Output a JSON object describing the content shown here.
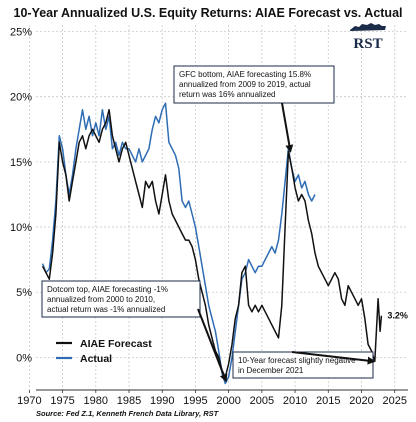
{
  "chart_data": {
    "type": "line",
    "title": "10-Year Annualized U.S. Equity Returns: AIAE Forecast vs. Actual",
    "source": "Source: Fed Z.1, Kenneth French Data Library, RST",
    "logo_text": "RST",
    "xlim": [
      1971,
      2027
    ],
    "ylim": [
      -0.025,
      0.255
    ],
    "x_ticks": [
      1970,
      1975,
      1980,
      1985,
      1990,
      1995,
      2000,
      2005,
      2010,
      2015,
      2020,
      2025
    ],
    "y_ticks": [
      {
        "value": 0.0,
        "label": "0%"
      },
      {
        "value": 0.05,
        "label": "5%"
      },
      {
        "value": 0.1,
        "label": "10%"
      },
      {
        "value": 0.15,
        "label": "15%"
      },
      {
        "value": 0.2,
        "label": "20%"
      },
      {
        "value": 0.25,
        "label": "25%"
      }
    ],
    "grid": true,
    "legend_position": "lower-left",
    "series": [
      {
        "name": "AIAE Forecast",
        "color": "#111111",
        "points": [
          [
            1972,
            0.07
          ],
          [
            1972.5,
            0.065
          ],
          [
            1973,
            0.06
          ],
          [
            1973.5,
            0.08
          ],
          [
            1974,
            0.11
          ],
          [
            1974.5,
            0.165
          ],
          [
            1975,
            0.15
          ],
          [
            1975.5,
            0.14
          ],
          [
            1976,
            0.12
          ],
          [
            1976.5,
            0.135
          ],
          [
            1977,
            0.15
          ],
          [
            1977.5,
            0.165
          ],
          [
            1978,
            0.17
          ],
          [
            1978.5,
            0.16
          ],
          [
            1979,
            0.17
          ],
          [
            1979.5,
            0.175
          ],
          [
            1980,
            0.17
          ],
          [
            1980.5,
            0.165
          ],
          [
            1981,
            0.175
          ],
          [
            1981.5,
            0.18
          ],
          [
            1982,
            0.19
          ],
          [
            1982.5,
            0.17
          ],
          [
            1983,
            0.16
          ],
          [
            1983.5,
            0.15
          ],
          [
            1984,
            0.16
          ],
          [
            1984.5,
            0.165
          ],
          [
            1985,
            0.155
          ],
          [
            1985.5,
            0.145
          ],
          [
            1986,
            0.135
          ],
          [
            1986.5,
            0.125
          ],
          [
            1987,
            0.115
          ],
          [
            1987.5,
            0.135
          ],
          [
            1988,
            0.13
          ],
          [
            1988.5,
            0.135
          ],
          [
            1989,
            0.12
          ],
          [
            1989.5,
            0.11
          ],
          [
            1990,
            0.125
          ],
          [
            1990.5,
            0.14
          ],
          [
            1991,
            0.12
          ],
          [
            1991.5,
            0.11
          ],
          [
            1992,
            0.105
          ],
          [
            1992.5,
            0.1
          ],
          [
            1993,
            0.095
          ],
          [
            1993.5,
            0.09
          ],
          [
            1994,
            0.09
          ],
          [
            1994.5,
            0.085
          ],
          [
            1995,
            0.075
          ],
          [
            1995.5,
            0.06
          ],
          [
            1996,
            0.05
          ],
          [
            1996.5,
            0.04
          ],
          [
            1997,
            0.025
          ],
          [
            1997.5,
            0.015
          ],
          [
            1998,
            0.005
          ],
          [
            1998.5,
            0.0
          ],
          [
            1999,
            -0.01
          ],
          [
            1999.5,
            -0.015
          ],
          [
            2000,
            -0.005
          ],
          [
            2000.5,
            0.01
          ],
          [
            2001,
            0.03
          ],
          [
            2001.5,
            0.04
          ],
          [
            2002,
            0.065
          ],
          [
            2002.5,
            0.07
          ],
          [
            2003,
            0.04
          ],
          [
            2003.5,
            0.035
          ],
          [
            2004,
            0.04
          ],
          [
            2004.5,
            0.035
          ],
          [
            2005,
            0.04
          ],
          [
            2005.5,
            0.035
          ],
          [
            2006,
            0.03
          ],
          [
            2006.5,
            0.025
          ],
          [
            2007,
            0.02
          ],
          [
            2007.5,
            0.015
          ],
          [
            2008,
            0.04
          ],
          [
            2008.5,
            0.1
          ],
          [
            2009,
            0.158
          ],
          [
            2009.5,
            0.145
          ],
          [
            2010,
            0.13
          ],
          [
            2010.5,
            0.12
          ],
          [
            2011,
            0.125
          ],
          [
            2011.5,
            0.12
          ],
          [
            2012,
            0.105
          ],
          [
            2012.5,
            0.095
          ],
          [
            2013,
            0.08
          ],
          [
            2013.5,
            0.07
          ],
          [
            2014,
            0.065
          ],
          [
            2014.5,
            0.06
          ],
          [
            2015,
            0.055
          ],
          [
            2015.5,
            0.06
          ],
          [
            2016,
            0.065
          ],
          [
            2016.5,
            0.06
          ],
          [
            2017,
            0.045
          ],
          [
            2017.5,
            0.04
          ],
          [
            2018,
            0.055
          ],
          [
            2018.5,
            0.05
          ],
          [
            2019,
            0.045
          ],
          [
            2019.5,
            0.04
          ],
          [
            2020,
            0.045
          ],
          [
            2020.5,
            0.03
          ],
          [
            2021,
            0.01
          ],
          [
            2021.5,
            0.005
          ],
          [
            2022,
            -0.003
          ],
          [
            2022.5,
            0.045
          ],
          [
            2022.8,
            0.02
          ],
          [
            2023,
            0.032
          ]
        ]
      },
      {
        "name": "Actual",
        "color": "#2e6db4",
        "points": [
          [
            1972,
            0.072
          ],
          [
            1972.5,
            0.065
          ],
          [
            1973,
            0.068
          ],
          [
            1973.5,
            0.09
          ],
          [
            1974,
            0.12
          ],
          [
            1974.5,
            0.17
          ],
          [
            1975,
            0.16
          ],
          [
            1975.5,
            0.14
          ],
          [
            1976,
            0.125
          ],
          [
            1976.5,
            0.14
          ],
          [
            1977,
            0.16
          ],
          [
            1977.5,
            0.175
          ],
          [
            1978,
            0.19
          ],
          [
            1978.5,
            0.175
          ],
          [
            1979,
            0.185
          ],
          [
            1979.5,
            0.17
          ],
          [
            1980,
            0.18
          ],
          [
            1980.5,
            0.17
          ],
          [
            1981,
            0.19
          ],
          [
            1981.5,
            0.175
          ],
          [
            1982,
            0.185
          ],
          [
            1982.5,
            0.16
          ],
          [
            1983,
            0.165
          ],
          [
            1983.5,
            0.155
          ],
          [
            1984,
            0.165
          ],
          [
            1984.5,
            0.16
          ],
          [
            1985,
            0.16
          ],
          [
            1985.5,
            0.155
          ],
          [
            1986,
            0.15
          ],
          [
            1986.5,
            0.16
          ],
          [
            1987,
            0.15
          ],
          [
            1987.5,
            0.155
          ],
          [
            1988,
            0.16
          ],
          [
            1988.5,
            0.175
          ],
          [
            1989,
            0.185
          ],
          [
            1989.5,
            0.18
          ],
          [
            1990,
            0.19
          ],
          [
            1990.5,
            0.195
          ],
          [
            1991,
            0.165
          ],
          [
            1991.5,
            0.16
          ],
          [
            1992,
            0.155
          ],
          [
            1992.5,
            0.145
          ],
          [
            1993,
            0.12
          ],
          [
            1993.5,
            0.115
          ],
          [
            1994,
            0.12
          ],
          [
            1994.5,
            0.11
          ],
          [
            1995,
            0.1
          ],
          [
            1995.5,
            0.085
          ],
          [
            1996,
            0.07
          ],
          [
            1996.5,
            0.055
          ],
          [
            1997,
            0.04
          ],
          [
            1997.5,
            0.03
          ],
          [
            1998,
            0.02
          ],
          [
            1998.5,
            0.005
          ],
          [
            1999,
            -0.012
          ],
          [
            1999.5,
            -0.02
          ],
          [
            2000,
            -0.015
          ],
          [
            2000.5,
            0.0
          ],
          [
            2001,
            0.02
          ],
          [
            2001.5,
            0.04
          ],
          [
            2002,
            0.06
          ],
          [
            2002.5,
            0.065
          ],
          [
            2003,
            0.075
          ],
          [
            2003.5,
            0.07
          ],
          [
            2004,
            0.065
          ],
          [
            2004.5,
            0.07
          ],
          [
            2005,
            0.07
          ],
          [
            2005.5,
            0.075
          ],
          [
            2006,
            0.08
          ],
          [
            2006.5,
            0.085
          ],
          [
            2007,
            0.08
          ],
          [
            2007.5,
            0.09
          ],
          [
            2008,
            0.11
          ],
          [
            2008.5,
            0.135
          ],
          [
            2009,
            0.16
          ],
          [
            2009.5,
            0.145
          ],
          [
            2010,
            0.135
          ],
          [
            2010.5,
            0.14
          ],
          [
            2011,
            0.13
          ],
          [
            2011.5,
            0.135
          ],
          [
            2012,
            0.125
          ],
          [
            2012.5,
            0.12
          ],
          [
            2013,
            0.125
          ]
        ]
      }
    ],
    "last_value_label": "3.2%",
    "annotations": [
      {
        "id": "gfc",
        "lines": [
          "GFC bottom, AIAE forecasting 15.8%",
          "annualized from 2009 to 2019, actual",
          "return was 16% annualized"
        ],
        "arrow_to": [
          2009.3,
          0.158
        ]
      },
      {
        "id": "dotcom",
        "lines": [
          "Dotcom top, AIAE forecasting -1%",
          "annualized from 2000 to 2010,",
          "actual return was -1% annualized"
        ],
        "arrow_to": [
          1999.6,
          -0.018
        ]
      },
      {
        "id": "dec2021",
        "lines": [
          "10-Year forecast slightly negative",
          "in December 2021"
        ],
        "arrow_to": [
          2021.9,
          -0.003
        ]
      }
    ]
  }
}
